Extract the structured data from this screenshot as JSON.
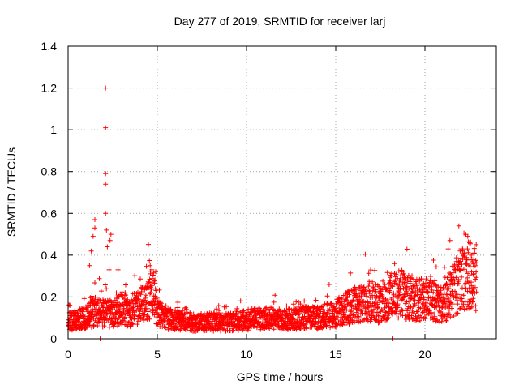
{
  "chart_data": {
    "type": "scatter",
    "title": "Day 277 of 2019, SRMTID for receiver larj",
    "xlabel": "GPS time / hours",
    "ylabel": "SRMTID / TECUs",
    "xlim": [
      0,
      24
    ],
    "ylim": [
      0,
      1.4
    ],
    "x_ticks": [
      0,
      5,
      10,
      15,
      20
    ],
    "x_tick_labels": [
      "0",
      "5",
      "10",
      "15",
      "20"
    ],
    "y_ticks": [
      0,
      0.2,
      0.4,
      0.6,
      0.8,
      1.0,
      1.2,
      1.4
    ],
    "y_tick_labels": [
      "0",
      "0.2",
      "0.4",
      "0.6",
      "0.8",
      "1",
      "1.2",
      "1.4"
    ],
    "grid": true,
    "marker": "+",
    "color": "#ff0000",
    "series": [
      {
        "name": "SRMTID",
        "baseline": [
          [
            0.0,
            0.08
          ],
          [
            0.5,
            0.09
          ],
          [
            1.0,
            0.1
          ],
          [
            1.5,
            0.13
          ],
          [
            2.0,
            0.12
          ],
          [
            2.5,
            0.12
          ],
          [
            3.0,
            0.15
          ],
          [
            3.5,
            0.12
          ],
          [
            4.0,
            0.15
          ],
          [
            4.5,
            0.2
          ],
          [
            4.8,
            0.22
          ],
          [
            5.0,
            0.12
          ],
          [
            5.5,
            0.1
          ],
          [
            6.0,
            0.09
          ],
          [
            7.0,
            0.08
          ],
          [
            8.0,
            0.08
          ],
          [
            9.0,
            0.08
          ],
          [
            10.0,
            0.09
          ],
          [
            11.0,
            0.1
          ],
          [
            12.0,
            0.09
          ],
          [
            13.0,
            0.1
          ],
          [
            14.0,
            0.1
          ],
          [
            15.0,
            0.12
          ],
          [
            16.0,
            0.16
          ],
          [
            17.0,
            0.18
          ],
          [
            17.5,
            0.16
          ],
          [
            18.0,
            0.2
          ],
          [
            18.5,
            0.22
          ],
          [
            19.0,
            0.2
          ],
          [
            19.5,
            0.18
          ],
          [
            20.0,
            0.19
          ],
          [
            20.5,
            0.18
          ],
          [
            21.0,
            0.16
          ],
          [
            21.5,
            0.22
          ],
          [
            22.0,
            0.28
          ],
          [
            22.5,
            0.32
          ],
          [
            22.9,
            0.28
          ]
        ],
        "peaks": [
          [
            2.1,
            1.2
          ],
          [
            2.1,
            1.01
          ],
          [
            2.1,
            0.79
          ],
          [
            2.1,
            0.74
          ],
          [
            2.1,
            0.6
          ],
          [
            2.15,
            0.52
          ],
          [
            2.2,
            0.44
          ],
          [
            1.5,
            0.57
          ],
          [
            1.5,
            0.53
          ],
          [
            1.4,
            0.49
          ],
          [
            1.3,
            0.42
          ],
          [
            1.2,
            0.35
          ],
          [
            2.4,
            0.5
          ],
          [
            2.35,
            0.47
          ],
          [
            2.3,
            0.33
          ],
          [
            2.8,
            0.33
          ],
          [
            4.6,
            0.35
          ],
          [
            4.7,
            0.33
          ],
          [
            18.3,
            0.36
          ],
          [
            21.4,
            0.47
          ],
          [
            21.3,
            0.43
          ],
          [
            21.9,
            0.54
          ],
          [
            22.4,
            0.49
          ],
          [
            22.5,
            0.46
          ],
          [
            22.6,
            0.4
          ],
          [
            1.8,
            0.0
          ],
          [
            18.2,
            0.0
          ],
          [
            0.1,
            0.16
          ],
          [
            2.0,
            0.18
          ],
          [
            3.2,
            0.22
          ]
        ]
      }
    ]
  }
}
